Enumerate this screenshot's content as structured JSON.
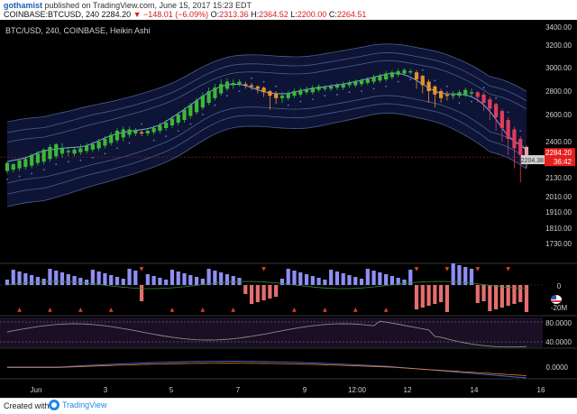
{
  "header": {
    "author": "gothamist",
    "published": "published on TradingView.com, June 15, 2017 15:23 EDT",
    "symbol": "COINBASE:BTCUSD, 240",
    "price": "2284.20",
    "change": "▼ −148.01 (−6.09%)",
    "o_label": "O:",
    "o_value": "2313.36",
    "h_label": "H:",
    "h_value": "2364.52",
    "l_label": "L:",
    "l_value": "2200.00",
    "c_label": "C:",
    "c_value": "2264.51"
  },
  "footer": {
    "created_with": "Created with",
    "brand": "TradingView"
  },
  "colors": {
    "background": "#000000",
    "up": "#3cb837",
    "down": "#e8902a",
    "strong_down": "#e03c5a",
    "bb_line": "#4b5f8c",
    "fill": "#0d1436",
    "ema": "#7fa8e0",
    "last_price": "#e61e1e"
  },
  "icons": [
    "tradingview-logo-icon",
    "us-flag-icon"
  ],
  "chart_data": {
    "type": "candlestick",
    "title": "BTC/USD, 240, COINBASE, Heikin Ashi",
    "price_axis": {
      "ticks": [
        "3400.00",
        "3200.00",
        "3000.00",
        "2800.00",
        "2600.00",
        "2400.00",
        "2130.00",
        "2010.00",
        "1910.00",
        "1810.00",
        "1730.00"
      ],
      "last_price_label": "2284.20",
      "countdown_label": "36:42",
      "secondary_label": "2204.38",
      "scale": "log"
    },
    "time_axis": [
      "Jun",
      "3",
      "5",
      "7",
      "9",
      "12:00",
      "12",
      "14",
      "16"
    ],
    "candles": [
      [
        2180,
        2240,
        2160,
        2250
      ],
      [
        2190,
        2230,
        2170,
        2240
      ],
      [
        2200,
        2260,
        2180,
        2270
      ],
      [
        2210,
        2270,
        2190,
        2290
      ],
      [
        2220,
        2300,
        2200,
        2310
      ],
      [
        2240,
        2310,
        2220,
        2330
      ],
      [
        2250,
        2340,
        2230,
        2350
      ],
      [
        2270,
        2360,
        2250,
        2380
      ],
      [
        2290,
        2380,
        2270,
        2390
      ],
      [
        2310,
        2350,
        2280,
        2390
      ],
      [
        2320,
        2330,
        2290,
        2360
      ],
      [
        2310,
        2340,
        2290,
        2360
      ],
      [
        2320,
        2350,
        2300,
        2380
      ],
      [
        2330,
        2370,
        2310,
        2390
      ],
      [
        2340,
        2380,
        2320,
        2400
      ],
      [
        2350,
        2400,
        2330,
        2420
      ],
      [
        2370,
        2420,
        2350,
        2440
      ],
      [
        2390,
        2450,
        2370,
        2470
      ],
      [
        2410,
        2480,
        2390,
        2500
      ],
      [
        2430,
        2490,
        2400,
        2510
      ],
      [
        2450,
        2490,
        2430,
        2510
      ],
      [
        2460,
        2480,
        2440,
        2500
      ],
      [
        2470,
        2460,
        2440,
        2490
      ],
      [
        2460,
        2480,
        2440,
        2500
      ],
      [
        2470,
        2500,
        2450,
        2520
      ],
      [
        2480,
        2520,
        2460,
        2540
      ],
      [
        2500,
        2540,
        2480,
        2560
      ],
      [
        2520,
        2570,
        2500,
        2590
      ],
      [
        2540,
        2600,
        2520,
        2620
      ],
      [
        2560,
        2640,
        2540,
        2660
      ],
      [
        2590,
        2680,
        2570,
        2700
      ],
      [
        2620,
        2720,
        2600,
        2740
      ],
      [
        2660,
        2760,
        2640,
        2790
      ],
      [
        2700,
        2800,
        2680,
        2830
      ],
      [
        2740,
        2830,
        2720,
        2860
      ],
      [
        2780,
        2860,
        2760,
        2900
      ],
      [
        2820,
        2880,
        2800,
        2910
      ],
      [
        2850,
        2870,
        2820,
        2900
      ],
      [
        2860,
        2880,
        2840,
        2900
      ],
      [
        2860,
        2850,
        2820,
        2880
      ],
      [
        2850,
        2840,
        2810,
        2870
      ],
      [
        2840,
        2820,
        2780,
        2850
      ],
      [
        2830,
        2790,
        2750,
        2840
      ],
      [
        2800,
        2760,
        2640,
        2810
      ],
      [
        2780,
        2740,
        2690,
        2800
      ],
      [
        2740,
        2760,
        2700,
        2790
      ],
      [
        2740,
        2780,
        2720,
        2800
      ],
      [
        2760,
        2800,
        2740,
        2820
      ],
      [
        2770,
        2810,
        2750,
        2830
      ],
      [
        2790,
        2810,
        2770,
        2840
      ],
      [
        2790,
        2830,
        2770,
        2850
      ],
      [
        2810,
        2840,
        2790,
        2860
      ],
      [
        2820,
        2830,
        2800,
        2850
      ],
      [
        2820,
        2840,
        2800,
        2860
      ],
      [
        2830,
        2850,
        2810,
        2870
      ],
      [
        2830,
        2860,
        2810,
        2880
      ],
      [
        2850,
        2870,
        2830,
        2890
      ],
      [
        2850,
        2880,
        2830,
        2900
      ],
      [
        2860,
        2890,
        2840,
        2910
      ],
      [
        2870,
        2900,
        2850,
        2920
      ],
      [
        2880,
        2920,
        2860,
        2940
      ],
      [
        2890,
        2930,
        2870,
        2950
      ],
      [
        2900,
        2950,
        2880,
        2970
      ],
      [
        2920,
        2960,
        2900,
        2980
      ],
      [
        2940,
        2970,
        2920,
        2990
      ],
      [
        2950,
        2980,
        2930,
        2995
      ],
      [
        2960,
        2970,
        2940,
        2990
      ],
      [
        2960,
        2900,
        2820,
        2980
      ],
      [
        2930,
        2850,
        2780,
        2940
      ],
      [
        2880,
        2800,
        2700,
        2900
      ],
      [
        2840,
        2770,
        2660,
        2850
      ],
      [
        2800,
        2740,
        2700,
        2820
      ],
      [
        2770,
        2760,
        2720,
        2800
      ],
      [
        2760,
        2770,
        2730,
        2800
      ],
      [
        2760,
        2790,
        2740,
        2810
      ],
      [
        2770,
        2810,
        2750,
        2830
      ],
      [
        2790,
        2790,
        2750,
        2820
      ],
      [
        2790,
        2750,
        2700,
        2800
      ],
      [
        2770,
        2700,
        2630,
        2790
      ],
      [
        2730,
        2650,
        2560,
        2750
      ],
      [
        2690,
        2580,
        2480,
        2700
      ],
      [
        2630,
        2500,
        2400,
        2650
      ],
      [
        2560,
        2420,
        2300,
        2580
      ],
      [
        2490,
        2350,
        2200,
        2510
      ],
      [
        2420,
        2300,
        2100,
        2440
      ],
      [
        2360,
        2284,
        2200,
        2370
      ]
    ],
    "ema_line": "light blue moving average overlaid on candles",
    "bollinger_bands": true,
    "volume_panel": {
      "ticks": [
        "0",
        "-20M"
      ],
      "marker_down": "▼",
      "marker_up": "▲"
    },
    "oscillator_panel": {
      "ticks": [
        "80.0000",
        "40.0000"
      ]
    },
    "macd_panel": {
      "ticks": [
        "0.0000"
      ]
    }
  }
}
